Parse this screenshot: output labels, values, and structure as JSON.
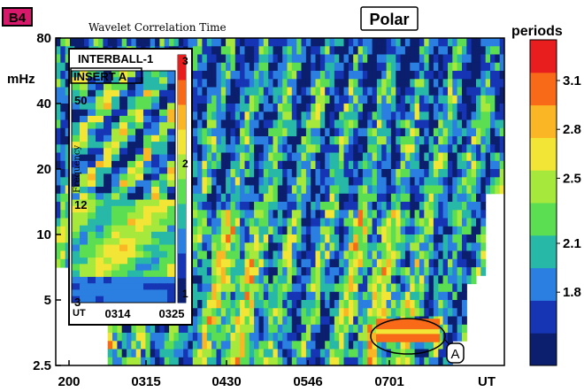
{
  "panel_label": "B4",
  "title": "Wavelet Correlation Time",
  "boxed_title": "Polar",
  "colorbar": {
    "title": "periods",
    "tick_labels": [
      "3.1",
      "2.8",
      "2.5",
      "2.1",
      "1.8"
    ],
    "tick_values": [
      3.1,
      2.8,
      2.5,
      2.1,
      1.8
    ],
    "range": [
      1.35,
      3.35
    ],
    "colors": [
      "#0b1f6e",
      "#1535b4",
      "#2a7fe0",
      "#27b8a8",
      "#5cde52",
      "#a6e83c",
      "#f2e535",
      "#fab624",
      "#f86a18",
      "#e81e1e"
    ]
  },
  "main_axes": {
    "ylabel": "mHz",
    "y_tick_labels": [
      "80",
      "40",
      "20",
      "10",
      "5",
      "2.5"
    ],
    "y_tick_values": [
      80,
      40,
      20,
      10,
      5,
      2.5
    ],
    "x_tick_labels": [
      "200",
      "0315",
      "0430",
      "0546",
      "0701",
      "UT"
    ],
    "annotation": "A"
  },
  "inset": {
    "title": "INTERBALL-1",
    "label": "INSERT A",
    "ylabel": "Frequency",
    "y_tick_labels": [
      "50",
      "12",
      "3"
    ],
    "x_tick_labels": [
      "UT",
      "0314",
      "0325"
    ],
    "colorbar_tick_labels": [
      "3",
      "2",
      "1"
    ]
  },
  "chart_data": {
    "type": "heatmap",
    "title": "Wavelet Correlation Time",
    "xlabel": "UT",
    "ylabel": "mHz",
    "y_scale": "log",
    "ylim": [
      2.5,
      80
    ],
    "x_ticks": [
      "200",
      "0315",
      "0430",
      "0546",
      "0701"
    ],
    "value_label": "periods",
    "value_range": [
      1.35,
      3.35
    ],
    "highlighted_region": {
      "label": "A",
      "x_range": [
        "0630",
        "0715"
      ],
      "y_range_mHz": [
        3.2,
        4.1
      ],
      "value_periods": 3.1
    },
    "inset": {
      "title": "INTERBALL-1",
      "x_range": [
        "0314",
        "0325"
      ],
      "y_ticks": [
        50,
        12,
        3
      ],
      "value_range": [
        1,
        3
      ]
    }
  }
}
